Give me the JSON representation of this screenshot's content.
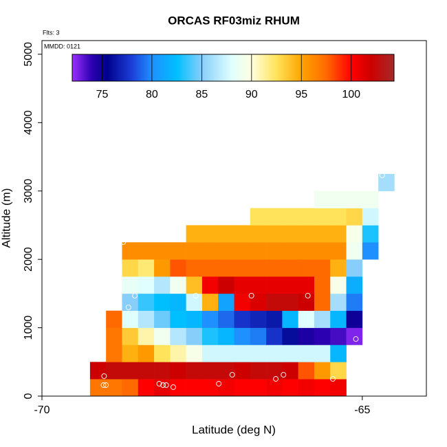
{
  "chart_data": {
    "type": "heatmap",
    "title": "ORCAS RF03miz RHUM",
    "subtitle": "Flts: 3",
    "annotation": "MMDD: 0121",
    "x_label": "Latitude (deg N)",
    "y_label": "Altitude (m)",
    "xlim": [
      -70,
      -64
    ],
    "ylim": [
      0,
      5200
    ],
    "xticks": [
      -70,
      -65
    ],
    "yticks": [
      0,
      1000,
      2000,
      3000,
      4000,
      5000
    ],
    "x_edges": [
      -69.25,
      -69,
      -68.75,
      -68.5,
      -68.25,
      -68,
      -67.75,
      -67.5,
      -67.25,
      -67,
      -66.75,
      -66.5,
      -66.25,
      -66,
      -65.75,
      -65.5,
      -65.25,
      -65,
      -64.75,
      -64.5
    ],
    "y_edges": [
      0,
      250,
      500,
      750,
      1000,
      1250,
      1500,
      1750,
      2000,
      2250,
      2500,
      2750,
      3000,
      3250
    ],
    "z": [
      [
        97,
        97,
        97.5,
        100,
        101,
        100,
        100,
        100,
        100.5,
        100,
        100,
        100.5,
        100,
        100.5,
        100,
        100.5,
        null,
        null,
        null
      ],
      [
        102,
        102.5,
        102.5,
        102.5,
        102.5,
        102,
        102.5,
        102.5,
        102.5,
        102,
        102.5,
        102.5,
        102,
        98,
        95.5,
        93,
        null,
        null,
        null
      ],
      [
        null,
        97,
        94.5,
        95.5,
        92.5,
        91,
        89.5,
        87.5,
        87.5,
        87.5,
        87.5,
        87.5,
        87.5,
        87.5,
        87.5,
        82,
        null,
        null,
        null
      ],
      [
        null,
        97,
        93.5,
        91,
        89,
        86.5,
        85,
        83,
        82,
        80,
        79.5,
        77.5,
        76,
        74.5,
        74,
        73.5,
        72.5,
        null,
        null
      ],
      [
        null,
        97.5,
        88,
        86.5,
        84.5,
        82.5,
        82,
        80,
        79,
        77.5,
        77,
        76.5,
        82,
        88,
        86,
        82,
        75,
        null,
        null
      ],
      [
        null,
        null,
        85,
        83.5,
        82.5,
        82,
        87.5,
        94.5,
        81,
        100.5,
        101.5,
        102.5,
        102.5,
        102,
        97.5,
        86,
        79.5,
        null,
        null
      ],
      [
        null,
        null,
        88.5,
        88,
        86.5,
        89,
        94,
        100.5,
        102,
        101,
        101,
        101,
        101,
        101,
        97.5,
        89.5,
        81.5,
        null,
        null
      ],
      [
        null,
        null,
        93,
        92,
        95.5,
        98,
        97.5,
        97.5,
        97.5,
        97.5,
        97.5,
        97.5,
        97.5,
        97.5,
        97.5,
        94.5,
        85,
        null,
        null
      ],
      [
        null,
        null,
        96,
        96,
        96,
        96,
        96,
        96,
        96,
        96,
        96,
        96,
        96,
        96,
        96,
        96,
        89,
        80,
        null
      ],
      [
        null,
        null,
        null,
        null,
        null,
        null,
        94.5,
        94.5,
        94.5,
        94.5,
        94.5,
        94.5,
        94.5,
        94.5,
        94.5,
        94.5,
        89.5,
        83,
        null
      ],
      [
        null,
        null,
        null,
        null,
        null,
        null,
        null,
        null,
        null,
        null,
        92.5,
        92.5,
        92.5,
        92.5,
        92.5,
        92.5,
        93,
        87.5,
        null
      ],
      [
        null,
        null,
        null,
        null,
        null,
        null,
        null,
        null,
        null,
        null,
        null,
        null,
        null,
        null,
        89,
        89,
        89,
        89,
        null
      ],
      [
        null,
        null,
        null,
        null,
        null,
        null,
        null,
        null,
        null,
        null,
        null,
        null,
        null,
        null,
        null,
        null,
        null,
        null,
        86
      ]
    ],
    "colorscale": [
      [
        72,
        "#9b30ff"
      ],
      [
        74,
        "#2a00b0"
      ],
      [
        75.5,
        "#00008b"
      ],
      [
        78,
        "#1c3fd8"
      ],
      [
        80,
        "#1e90ff"
      ],
      [
        82.5,
        "#00bfff"
      ],
      [
        85,
        "#87cefa"
      ],
      [
        88,
        "#e0ffff"
      ],
      [
        90,
        "#ffffe0"
      ],
      [
        92.5,
        "#ffe35a"
      ],
      [
        95,
        "#ffa500"
      ],
      [
        97.5,
        "#ff6a00"
      ],
      [
        100,
        "#ff0000"
      ],
      [
        102,
        "#cd0000"
      ],
      [
        104.3,
        "#a52a2a"
      ]
    ],
    "colorbar": {
      "lim": [
        72,
        104.3
      ],
      "ticks": [
        75,
        80,
        85,
        90,
        95,
        100
      ]
    },
    "points": {
      "x": [
        -68.73,
        -69.03,
        -69.04,
        -69.0,
        -68.55,
        -68.65,
        -68.17,
        -68.11,
        -68.06,
        -67.95,
        -67.6,
        -67.24,
        -67.03,
        -66.73,
        -66.23,
        -66.35,
        -65.85,
        -65.46,
        -65.1,
        -64.69
      ],
      "y": [
        2254,
        292,
        161,
        161,
        1469,
        1298,
        181,
        161,
        161,
        131,
        1469,
        181,
        312,
        1469,
        312,
        252,
        1469,
        252,
        835,
        3229
      ],
      "color": "#ffffff"
    }
  }
}
